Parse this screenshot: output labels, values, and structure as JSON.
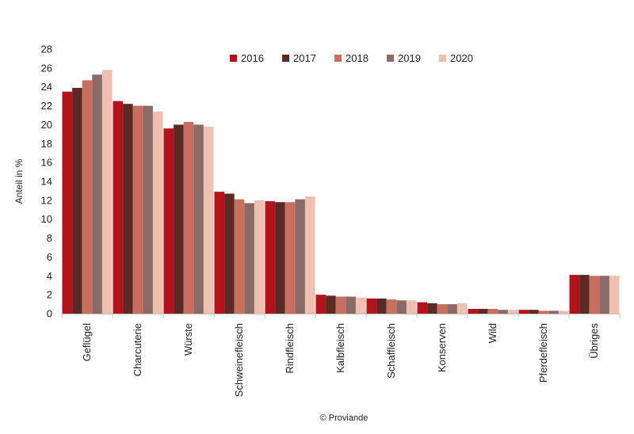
{
  "chart_data": {
    "type": "bar",
    "title": "",
    "xlabel": "",
    "ylabel": "Anteil in %",
    "ylim": [
      0,
      28
    ],
    "yticks": [
      0,
      2,
      4,
      6,
      8,
      10,
      12,
      14,
      16,
      18,
      20,
      22,
      24,
      26,
      28
    ],
    "grid": false,
    "legend_position": "top",
    "categories": [
      "Geflügel",
      "Charcuterie",
      "Würste",
      "Schweinefleisch",
      "Rindfleisch",
      "Kalbfleisch",
      "Schaffleisch",
      "Konserven",
      "Wild",
      "Pferdefleisch",
      "Übriges"
    ],
    "series": [
      {
        "name": "2016",
        "color": "#b5121b",
        "values": [
          23.5,
          22.5,
          19.6,
          12.9,
          11.9,
          2.0,
          1.6,
          1.2,
          0.5,
          0.4,
          4.1
        ]
      },
      {
        "name": "2017",
        "color": "#5a2a25",
        "values": [
          23.9,
          22.2,
          20.0,
          12.7,
          11.8,
          1.9,
          1.6,
          1.1,
          0.5,
          0.4,
          4.1
        ]
      },
      {
        "name": "2018",
        "color": "#c8705f",
        "values": [
          24.7,
          22.0,
          20.3,
          12.1,
          11.8,
          1.8,
          1.5,
          1.0,
          0.5,
          0.3,
          4.0
        ]
      },
      {
        "name": "2019",
        "color": "#8a6a66",
        "values": [
          25.3,
          22.0,
          20.0,
          11.7,
          12.1,
          1.8,
          1.4,
          1.0,
          0.4,
          0.3,
          4.0
        ]
      },
      {
        "name": "2020",
        "color": "#efbfb1",
        "values": [
          25.8,
          21.4,
          19.8,
          12.0,
          12.4,
          1.7,
          1.4,
          1.1,
          0.4,
          0.3,
          4.0
        ]
      }
    ],
    "source": "© Proviande"
  }
}
